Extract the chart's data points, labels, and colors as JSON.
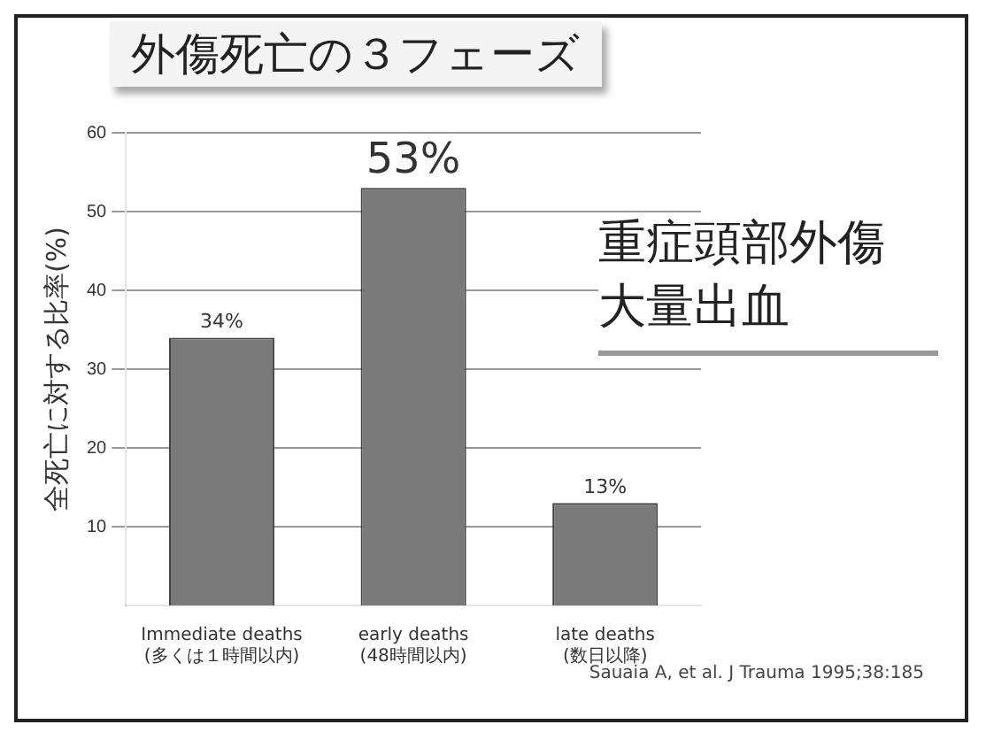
{
  "chart_data": {
    "type": "bar",
    "title": "外傷死亡の３フェーズ",
    "ylabel": "全死亡に対する比率(%)",
    "categories": [
      "Immediate deaths\n(多くは１時間以内)",
      "early deaths\n(48時間以内)",
      "late deaths\n(数日以降)"
    ],
    "values": [
      34,
      53,
      13
    ],
    "value_labels": [
      "34%",
      "53%",
      "13%"
    ],
    "color": "#7a7a7a",
    "ylim": [
      0,
      60
    ],
    "yticks": [
      10,
      20,
      30,
      40,
      50,
      60
    ],
    "grid": "y",
    "annotations": [
      "重症頭部外傷",
      "大量出血",
      "Sauaia A, et al. J Trauma 1995;38:185"
    ]
  }
}
